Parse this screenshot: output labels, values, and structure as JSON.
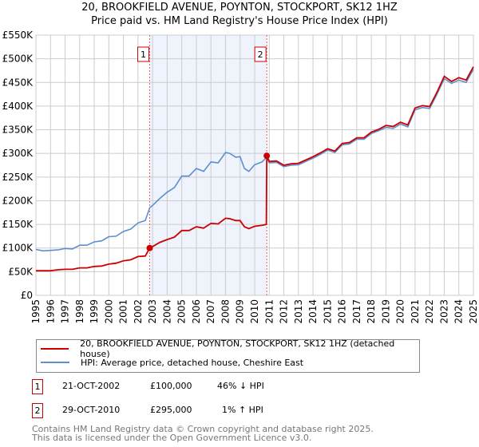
{
  "title": "20, BROOKFIELD AVENUE, POYNTON, STOCKPORT, SK12 1HZ",
  "subtitle": "Price paid vs. HM Land Registry's House Price Index (HPI)",
  "chart_data": {
    "type": "line",
    "title": "20, BROOKFIELD AVENUE, POYNTON, STOCKPORT, SK12 1HZ",
    "subtitle": "Price paid vs. HM Land Registry's House Price Index (HPI)",
    "xlim": [
      1995,
      2025
    ],
    "ylim": [
      0,
      550000
    ],
    "x_ticks": [
      "1995",
      "1996",
      "1997",
      "1998",
      "1999",
      "2000",
      "2001",
      "2002",
      "2003",
      "2004",
      "2005",
      "2006",
      "2007",
      "2008",
      "2009",
      "2010",
      "2011",
      "2012",
      "2013",
      "2014",
      "2015",
      "2016",
      "2017",
      "2018",
      "2019",
      "2020",
      "2021",
      "2022",
      "2023",
      "2024",
      "2025"
    ],
    "y_ticks": [
      {
        "v": 0,
        "l": "£0"
      },
      {
        "v": 50000,
        "l": "£50K"
      },
      {
        "v": 100000,
        "l": "£100K"
      },
      {
        "v": 150000,
        "l": "£150K"
      },
      {
        "v": 200000,
        "l": "£200K"
      },
      {
        "v": 250000,
        "l": "£250K"
      },
      {
        "v": 300000,
        "l": "£300K"
      },
      {
        "v": 350000,
        "l": "£350K"
      },
      {
        "v": 400000,
        "l": "£400K"
      },
      {
        "v": 450000,
        "l": "£450K"
      },
      {
        "v": 500000,
        "l": "£500K"
      },
      {
        "v": 550000,
        "l": "£550K"
      }
    ],
    "grid": true,
    "shaded_region": [
      2002.8,
      2010.83
    ],
    "series": [
      {
        "name": "20, BROOKFIELD AVENUE, POYNTON, STOCKPORT, SK12 1HZ (detached house)",
        "color": "#cc0000",
        "x": [
          1995,
          1995.5,
          1996,
          1996.5,
          1997,
          1997.5,
          1998,
          1998.5,
          1999,
          1999.5,
          2000,
          2000.5,
          2001,
          2001.5,
          2002,
          2002.5,
          2002.8,
          2003,
          2003.5,
          2004,
          2004.5,
          2005,
          2005.5,
          2006,
          2006.5,
          2007,
          2007.5,
          2008,
          2008.3,
          2008.7,
          2009,
          2009.3,
          2009.6,
          2010,
          2010.5,
          2010.8,
          2010.83,
          2011,
          2011.5,
          2012,
          2012.5,
          2013,
          2013.5,
          2014,
          2014.5,
          2015,
          2015.5,
          2016,
          2016.5,
          2017,
          2017.5,
          2018,
          2018.5,
          2019,
          2019.5,
          2020,
          2020.5,
          2021,
          2021.5,
          2022,
          2022.5,
          2023,
          2023.5,
          2024,
          2024.5,
          2025
        ],
        "y": [
          52000,
          52000,
          52000,
          54000,
          55000,
          55000,
          58000,
          58000,
          61000,
          62000,
          66000,
          68000,
          73000,
          75000,
          82000,
          83000,
          100000,
          103000,
          112000,
          118000,
          123000,
          137000,
          137000,
          145000,
          142000,
          152000,
          151000,
          163000,
          162000,
          158000,
          158000,
          145000,
          141000,
          146000,
          148000,
          150000,
          295000,
          283000,
          284000,
          275000,
          278000,
          279000,
          286000,
          293000,
          301000,
          310000,
          305000,
          321000,
          323000,
          333000,
          333000,
          345000,
          351000,
          359000,
          357000,
          366000,
          360000,
          396000,
          401000,
          399000,
          429000,
          463000,
          452000,
          460000,
          455000,
          483000
        ]
      },
      {
        "name": "HPI: Average price, detached house, Cheshire East",
        "color": "#5b8fd0",
        "x": [
          1995,
          1995.5,
          1996,
          1996.5,
          1997,
          1997.5,
          1998,
          1998.5,
          1999,
          1999.5,
          2000,
          2000.5,
          2001,
          2001.5,
          2002,
          2002.5,
          2002.8,
          2003,
          2003.5,
          2004,
          2004.5,
          2005,
          2005.5,
          2006,
          2006.5,
          2007,
          2007.5,
          2008,
          2008.3,
          2008.7,
          2009,
          2009.3,
          2009.6,
          2010,
          2010.5,
          2010.83,
          2011,
          2011.5,
          2012,
          2012.5,
          2013,
          2013.5,
          2014,
          2014.5,
          2015,
          2015.5,
          2016,
          2016.5,
          2017,
          2017.5,
          2018,
          2018.5,
          2019,
          2019.5,
          2020,
          2020.5,
          2021,
          2021.5,
          2022,
          2022.5,
          2023,
          2023.5,
          2024,
          2024.5,
          2025
        ],
        "y": [
          97000,
          94000,
          95000,
          96000,
          99000,
          98000,
          106000,
          106000,
          113000,
          115000,
          124000,
          125000,
          135000,
          140000,
          153000,
          158000,
          185000,
          190000,
          205000,
          218000,
          228000,
          252000,
          252000,
          268000,
          262000,
          282000,
          280000,
          302000,
          300000,
          292000,
          293000,
          268000,
          262000,
          276000,
          282000,
          292000,
          280000,
          281000,
          272000,
          275000,
          276000,
          283000,
          290000,
          298000,
          307000,
          302000,
          318000,
          320000,
          330000,
          330000,
          342000,
          348000,
          355000,
          353000,
          362000,
          356000,
          392000,
          397000,
          395000,
          425000,
          458000,
          448000,
          455000,
          450000,
          478000
        ]
      }
    ],
    "annotations": [
      {
        "label": "1",
        "x": 2002.8,
        "y": 100000,
        "date": "21-OCT-2002",
        "price": "£100,000",
        "hpi": "46% ↓ HPI"
      },
      {
        "label": "2",
        "x": 2010.83,
        "y": 295000,
        "date": "29-OCT-2010",
        "price": "£295,000",
        "hpi": "1% ↑ HPI"
      }
    ],
    "legend_placement": "below"
  },
  "footer": {
    "line1": "Contains HM Land Registry data © Crown copyright and database right 2025.",
    "line2": "This data is licensed under the Open Government Licence v3.0."
  }
}
